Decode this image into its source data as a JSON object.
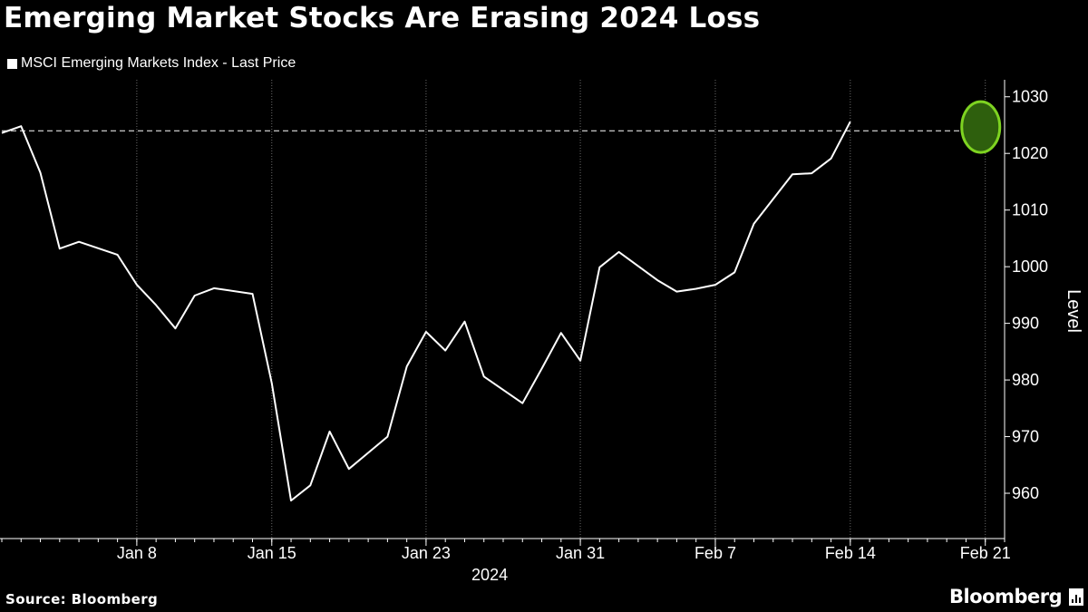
{
  "header": {
    "title": "Emerging Market Stocks Are Erasing 2024 Loss"
  },
  "footer": {
    "source": "Source: Bloomberg",
    "brand": "Bloomberg"
  },
  "chart_data": {
    "type": "line",
    "title": "Emerging Market Stocks Are Erasing 2024 Loss",
    "ylabel": "Level",
    "xlabel": "2024",
    "ylim": [
      952,
      1033
    ],
    "yticks": [
      960,
      970,
      980,
      990,
      1000,
      1010,
      1020,
      1030
    ],
    "xticks": [
      {
        "label": "Jan 8",
        "date": "2024-01-08"
      },
      {
        "label": "Jan 15",
        "date": "2024-01-15"
      },
      {
        "label": "Jan 23",
        "date": "2024-01-23"
      },
      {
        "label": "Jan 31",
        "date": "2024-01-31"
      },
      {
        "label": "Feb 7",
        "date": "2024-02-07"
      },
      {
        "label": "Feb 14",
        "date": "2024-02-14"
      },
      {
        "label": "Feb 21",
        "date": "2024-02-21"
      }
    ],
    "xlim": [
      "2024-01-01",
      "2024-02-22"
    ],
    "grid": "vertical dotted",
    "legend_position": "top-left",
    "reference_line": {
      "y": 1024,
      "style": "dashed"
    },
    "highlight": {
      "date": "2024-02-21",
      "y": 1024.5,
      "color": "#7ed321"
    },
    "series": [
      {
        "name": "MSCI Emerging Markets Index - Last Price",
        "color": "#ffffff",
        "x": [
          "2024-01-01",
          "2024-01-02",
          "2024-01-03",
          "2024-01-04",
          "2024-01-05",
          "2024-01-07",
          "2024-01-08",
          "2024-01-09",
          "2024-01-10",
          "2024-01-11",
          "2024-01-12",
          "2024-01-14",
          "2024-01-15",
          "2024-01-16",
          "2024-01-17",
          "2024-01-18",
          "2024-01-19",
          "2024-01-21",
          "2024-01-22",
          "2024-01-23",
          "2024-01-24",
          "2024-01-25",
          "2024-01-26",
          "2024-01-28",
          "2024-01-29",
          "2024-01-30",
          "2024-01-31",
          "2024-02-01",
          "2024-02-02",
          "2024-02-04",
          "2024-02-05",
          "2024-02-06",
          "2024-02-07",
          "2024-02-08",
          "2024-02-09",
          "2024-02-11",
          "2024-02-12",
          "2024-02-13",
          "2024-02-14",
          "2024-02-15",
          "2024-02-16",
          "2024-02-18",
          "2024-02-19",
          "2024-02-20",
          "2024-02-21"
        ],
        "values": [
          1023.6,
          1024.8,
          1016.6,
          1003.2,
          1004.4,
          1002.1,
          996.8,
          993.2,
          989.1,
          994.9,
          996.2,
          995.2,
          979.4,
          958.7,
          961.4,
          970.9,
          964.3,
          970.0,
          982.4,
          988.5,
          985.2,
          990.3,
          980.6,
          975.9,
          982.0,
          988.3,
          983.4,
          999.9,
          1002.6,
          997.6,
          995.6,
          996.1,
          996.8,
          999.0,
          1007.6,
          1016.3,
          1016.5,
          1019.1,
          1025.6,
          null,
          null,
          null,
          null,
          null,
          null
        ]
      }
    ]
  }
}
